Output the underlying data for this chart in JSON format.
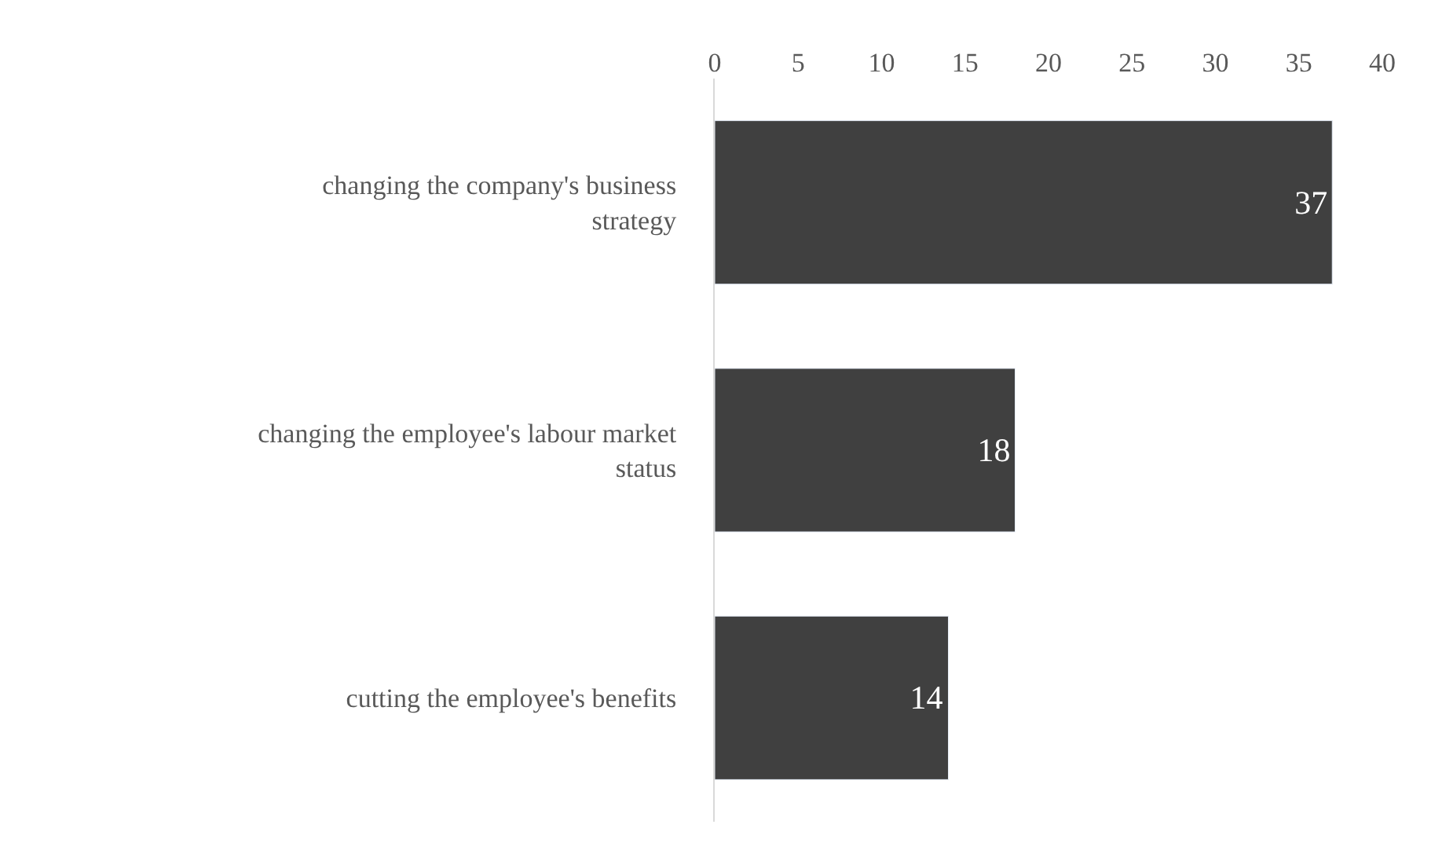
{
  "chart_data": {
    "type": "bar",
    "orientation": "horizontal",
    "categories": [
      "changing the company's business strategy",
      "changing the employee's labour market status",
      "cutting the employee's benefits"
    ],
    "values": [
      37,
      18,
      14
    ],
    "color": "#404040",
    "xlim": [
      0,
      40
    ],
    "xticks": [
      0,
      5,
      10,
      15,
      20,
      25,
      30,
      35,
      40
    ],
    "data_labels": true,
    "legend": false
  }
}
